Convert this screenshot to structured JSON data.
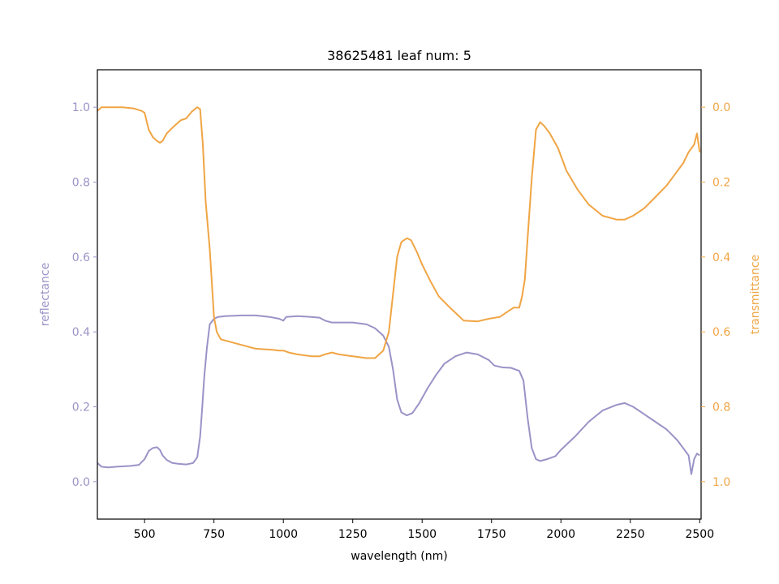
{
  "chart_data": {
    "type": "line",
    "title": "38625481 leaf num: 5",
    "xlabel": "wavelength (nm)",
    "ylabel_left": "reflectance",
    "ylabel_right": "transmittance",
    "xlim": [
      330,
      2505
    ],
    "ylim_left": [
      -0.1,
      1.1
    ],
    "ylim_right_inverted": [
      1.1,
      -0.1
    ],
    "x_ticks": [
      500,
      750,
      1000,
      1250,
      1500,
      1750,
      2000,
      2250,
      2500
    ],
    "y_ticks_left": [
      "0.0",
      "0.2",
      "0.4",
      "0.6",
      "0.8",
      "1.0"
    ],
    "y_ticks_right": [
      "0.0",
      "0.2",
      "0.4",
      "0.6",
      "0.8",
      "1.0"
    ],
    "grid": false,
    "legend": "none",
    "colors": {
      "reflectance": "#9a93c7",
      "transmittance": "#f0a544",
      "axes": "#000000"
    },
    "series": [
      {
        "axis": "left",
        "color": "#9a93c7",
        "x": [
          330,
          345,
          370,
          400,
          450,
          480,
          500,
          515,
          530,
          545,
          555,
          565,
          580,
          600,
          620,
          650,
          675,
          690,
          700,
          708,
          715,
          725,
          735,
          750,
          765,
          790,
          850,
          900,
          950,
          985,
          1000,
          1010,
          1050,
          1100,
          1130,
          1150,
          1175,
          1200,
          1250,
          1300,
          1330,
          1360,
          1380,
          1395,
          1410,
          1425,
          1445,
          1465,
          1490,
          1520,
          1550,
          1580,
          1620,
          1660,
          1700,
          1740,
          1760,
          1790,
          1820,
          1850,
          1865,
          1880,
          1895,
          1910,
          1925,
          1950,
          1980,
          2000,
          2050,
          2100,
          2150,
          2200,
          2230,
          2260,
          2300,
          2340,
          2380,
          2400,
          2420,
          2440,
          2460,
          2470,
          2480,
          2490,
          2500
        ],
        "y": [
          0.05,
          0.04,
          0.038,
          0.04,
          0.042,
          0.045,
          0.06,
          0.082,
          0.09,
          0.092,
          0.085,
          0.07,
          0.058,
          0.05,
          0.048,
          0.046,
          0.05,
          0.065,
          0.12,
          0.2,
          0.28,
          0.36,
          0.42,
          0.435,
          0.44,
          0.442,
          0.444,
          0.444,
          0.44,
          0.435,
          0.43,
          0.44,
          0.442,
          0.44,
          0.438,
          0.43,
          0.425,
          0.425,
          0.425,
          0.42,
          0.41,
          0.39,
          0.36,
          0.3,
          0.22,
          0.185,
          0.177,
          0.183,
          0.21,
          0.25,
          0.285,
          0.315,
          0.335,
          0.345,
          0.34,
          0.325,
          0.31,
          0.305,
          0.304,
          0.296,
          0.27,
          0.17,
          0.09,
          0.06,
          0.055,
          0.06,
          0.068,
          0.085,
          0.12,
          0.16,
          0.19,
          0.205,
          0.21,
          0.2,
          0.18,
          0.16,
          0.14,
          0.125,
          0.11,
          0.09,
          0.07,
          0.02,
          0.06,
          0.075,
          0.07
        ]
      },
      {
        "axis": "right",
        "color": "#f0a544",
        "x": [
          330,
          345,
          380,
          420,
          460,
          490,
          500,
          515,
          530,
          545,
          555,
          565,
          580,
          600,
          630,
          650,
          670,
          690,
          700,
          710,
          720,
          735,
          750,
          760,
          775,
          800,
          850,
          900,
          960,
          985,
          1000,
          1020,
          1050,
          1100,
          1130,
          1150,
          1175,
          1200,
          1250,
          1300,
          1330,
          1360,
          1380,
          1395,
          1410,
          1425,
          1445,
          1460,
          1480,
          1500,
          1530,
          1560,
          1600,
          1650,
          1700,
          1740,
          1780,
          1800,
          1830,
          1850,
          1860,
          1870,
          1880,
          1895,
          1910,
          1925,
          1940,
          1960,
          1990,
          2020,
          2060,
          2100,
          2150,
          2200,
          2230,
          2260,
          2300,
          2340,
          2380,
          2410,
          2440,
          2460,
          2470,
          2480,
          2490,
          2500
        ],
        "y": [
          0.01,
          0.0,
          0.0,
          0.0,
          0.003,
          0.01,
          0.015,
          0.06,
          0.08,
          0.09,
          0.095,
          0.09,
          0.07,
          0.055,
          0.035,
          0.03,
          0.012,
          0.0,
          0.005,
          0.1,
          0.25,
          0.38,
          0.56,
          0.6,
          0.62,
          0.625,
          0.635,
          0.645,
          0.648,
          0.65,
          0.65,
          0.655,
          0.66,
          0.665,
          0.665,
          0.66,
          0.655,
          0.66,
          0.665,
          0.67,
          0.67,
          0.65,
          0.6,
          0.5,
          0.4,
          0.36,
          0.35,
          0.355,
          0.385,
          0.42,
          0.465,
          0.505,
          0.535,
          0.57,
          0.572,
          0.565,
          0.56,
          0.55,
          0.535,
          0.535,
          0.505,
          0.46,
          0.35,
          0.19,
          0.06,
          0.04,
          0.05,
          0.07,
          0.11,
          0.17,
          0.22,
          0.26,
          0.29,
          0.3,
          0.3,
          0.29,
          0.27,
          0.24,
          0.21,
          0.18,
          0.15,
          0.12,
          0.11,
          0.1,
          0.07,
          0.12
        ]
      }
    ]
  }
}
